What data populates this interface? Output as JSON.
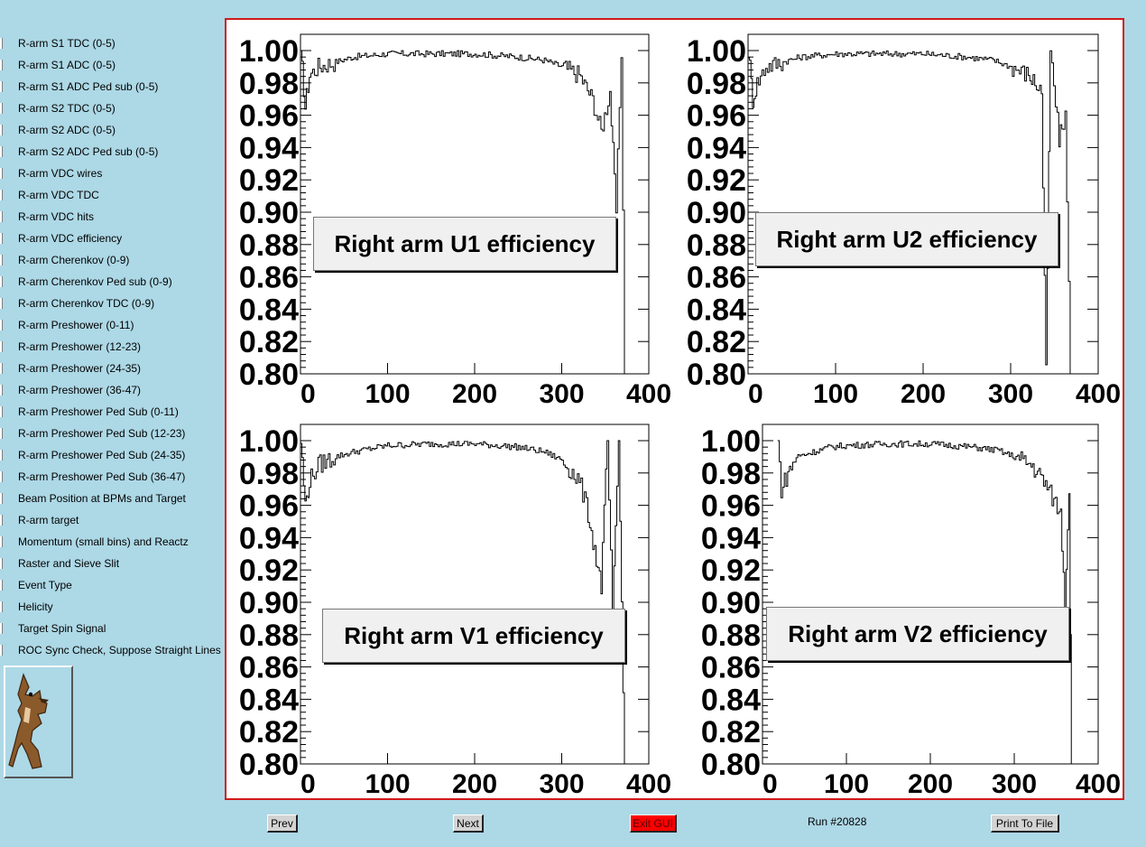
{
  "sidebar": {
    "items": [
      "R-arm S1 TDC (0-5)",
      "R-arm S1 ADC (0-5)",
      "R-arm S1 ADC Ped sub (0-5)",
      "R-arm S2 TDC (0-5)",
      "R-arm S2 ADC (0-5)",
      "R-arm S2 ADC Ped sub (0-5)",
      "R-arm VDC wires",
      "R-arm VDC TDC",
      "R-arm VDC hits",
      "R-arm VDC efficiency",
      "R-arm Cherenkov (0-9)",
      "R-arm Cherenkov Ped sub (0-9)",
      "R-arm Cherenkov TDC (0-9)",
      "R-arm Preshower (0-11)",
      "R-arm Preshower (12-23)",
      "R-arm Preshower (24-35)",
      "R-arm Preshower (36-47)",
      "R-arm Preshower Ped Sub (0-11)",
      "R-arm Preshower Ped Sub (12-23)",
      "R-arm Preshower Ped Sub (24-35)",
      "R-arm Preshower Ped Sub (36-47)",
      "Beam Position at BPMs and Target",
      "R-arm target",
      "Momentum (small bins) and Reactz",
      "Raster and Sieve Slit",
      "Event Type",
      "Helicity",
      "Target Spin Signal",
      "ROC Sync Check, Suppose Straight Lines"
    ],
    "logo_icon": "coyote-mascot-icon"
  },
  "buttons": {
    "prev": "Prev",
    "next": "Next",
    "exit": "Exit GUI",
    "print": "Print To File"
  },
  "run_label": "Run #20828",
  "colors": {
    "background": "#add8e6",
    "canvas_border": "#d11a1a",
    "exit_button": "#ff0000"
  },
  "chart_data": [
    {
      "type": "line",
      "title": "Right arm U1 efficiency",
      "xlim": [
        0,
        400
      ],
      "ylim": [
        0.8,
        1.0
      ],
      "xticks": [
        "0",
        "100",
        "200",
        "300",
        "400"
      ],
      "yticks": [
        "0.80",
        "0.82",
        "0.84",
        "0.86",
        "0.88",
        "0.90",
        "0.92",
        "0.94",
        "0.96",
        "0.98",
        "1.00"
      ],
      "x": [
        0,
        5,
        10,
        20,
        40,
        60,
        80,
        100,
        150,
        200,
        250,
        280,
        300,
        320,
        335,
        345,
        355,
        362,
        368,
        372
      ],
      "y": [
        1.0,
        0.965,
        0.985,
        0.99,
        0.993,
        0.996,
        0.997,
        0.998,
        0.998,
        0.998,
        0.996,
        0.994,
        0.99,
        0.985,
        0.97,
        0.95,
        0.975,
        0.9,
        1.0,
        0.8
      ]
    },
    {
      "type": "line",
      "title": "Right arm U2 efficiency",
      "xlim": [
        0,
        400
      ],
      "ylim": [
        0.8,
        1.0
      ],
      "xticks": [
        "0",
        "100",
        "200",
        "300",
        "400"
      ],
      "yticks": [
        "0.80",
        "0.82",
        "0.84",
        "0.86",
        "0.88",
        "0.90",
        "0.92",
        "0.94",
        "0.96",
        "0.98",
        "1.00"
      ],
      "x": [
        0,
        5,
        10,
        20,
        40,
        60,
        80,
        100,
        150,
        200,
        250,
        280,
        300,
        320,
        335,
        340,
        345,
        355,
        362,
        368
      ],
      "y": [
        1.0,
        0.97,
        0.98,
        0.99,
        0.993,
        0.996,
        0.997,
        0.998,
        0.998,
        0.998,
        0.996,
        0.994,
        0.99,
        0.985,
        0.975,
        0.8,
        1.0,
        0.945,
        0.96,
        0.8
      ]
    },
    {
      "type": "line",
      "title": "Right arm V1 efficiency",
      "xlim": [
        0,
        400
      ],
      "ylim": [
        0.8,
        1.0
      ],
      "xticks": [
        "0",
        "100",
        "200",
        "300",
        "400"
      ],
      "yticks": [
        "0.80",
        "0.82",
        "0.84",
        "0.86",
        "0.88",
        "0.90",
        "0.92",
        "0.94",
        "0.96",
        "0.98",
        "1.00"
      ],
      "x": [
        0,
        5,
        10,
        20,
        40,
        60,
        80,
        100,
        150,
        200,
        250,
        280,
        300,
        320,
        330,
        345,
        352,
        358,
        365,
        372
      ],
      "y": [
        1.0,
        0.96,
        0.975,
        0.985,
        0.99,
        0.993,
        0.995,
        0.997,
        0.998,
        0.998,
        0.996,
        0.993,
        0.988,
        0.975,
        0.955,
        0.91,
        1.0,
        0.89,
        1.0,
        0.8
      ]
    },
    {
      "type": "line",
      "title": "Right arm V2 efficiency",
      "xlim": [
        0,
        400
      ],
      "ylim": [
        0.8,
        1.0
      ],
      "xticks": [
        "0",
        "100",
        "200",
        "300",
        "400"
      ],
      "yticks": [
        "0.80",
        "0.82",
        "0.84",
        "0.86",
        "0.88",
        "0.90",
        "0.92",
        "0.94",
        "0.96",
        "0.98",
        "1.00"
      ],
      "x": [
        18,
        22,
        30,
        40,
        60,
        80,
        100,
        150,
        200,
        250,
        280,
        300,
        320,
        335,
        345,
        355,
        360,
        365,
        368
      ],
      "y": [
        1.0,
        0.97,
        0.98,
        0.99,
        0.993,
        0.996,
        0.997,
        0.998,
        0.998,
        0.996,
        0.994,
        0.99,
        0.985,
        0.975,
        0.965,
        0.955,
        0.9,
        0.97,
        0.8
      ]
    }
  ]
}
